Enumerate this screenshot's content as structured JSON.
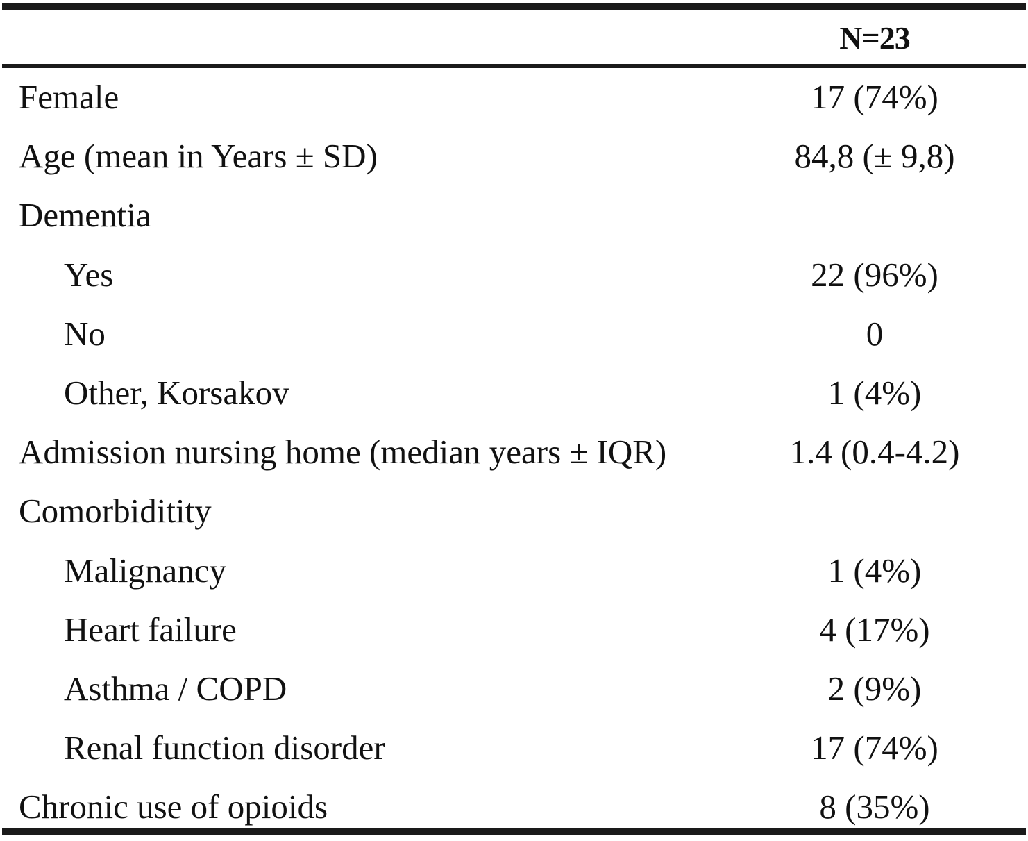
{
  "table": {
    "header": {
      "column_label": "",
      "value_label": "N=23"
    },
    "rows": [
      {
        "label": "Female",
        "value": "17 (74%)",
        "indent": false
      },
      {
        "label": "Age (mean in Years ± SD)",
        "value": "84,8 (± 9,8)",
        "indent": false
      },
      {
        "label": "Dementia",
        "value": "",
        "indent": false
      },
      {
        "label": "Yes",
        "value": "22 (96%)",
        "indent": true
      },
      {
        "label": "No",
        "value": "0",
        "indent": true
      },
      {
        "label": "Other, Korsakov",
        "value": "1 (4%)",
        "indent": true
      },
      {
        "label": "Admission nursing home (median years ± IQR)",
        "value": "1.4 (0.4-4.2)",
        "indent": false
      },
      {
        "label": "Comorbiditity",
        "value": "",
        "indent": false
      },
      {
        "label": "Malignancy",
        "value": "1 (4%)",
        "indent": true
      },
      {
        "label": "Heart failure",
        "value": "4 (17%)",
        "indent": true
      },
      {
        "label": "Asthma / COPD",
        "value": "2 (9%)",
        "indent": true
      },
      {
        "label": "Renal function disorder",
        "value": "17 (74%)",
        "indent": true
      },
      {
        "label": "Chronic use of opioids",
        "value": "8 (35%)",
        "indent": false
      }
    ]
  }
}
